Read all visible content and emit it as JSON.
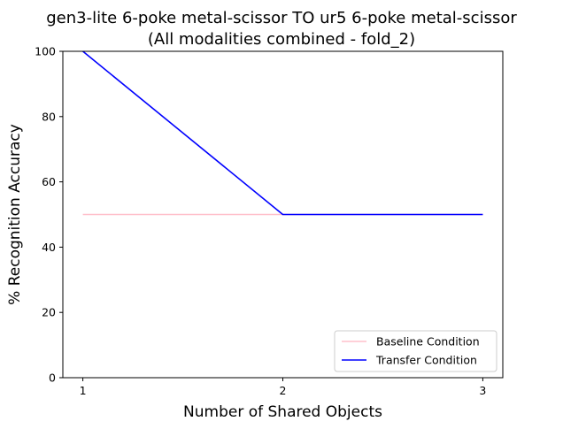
{
  "chart_data": {
    "type": "line",
    "title_line1": "gen3-lite 6-poke metal-scissor TO ur5 6-poke metal-scissor",
    "title_line2": "(All modalities combined - fold_2)",
    "xlabel": "Number of Shared Objects",
    "ylabel": "% Recognition Accuracy",
    "x": [
      1,
      2,
      3
    ],
    "xlim": [
      0.9,
      3.1
    ],
    "ylim": [
      0,
      100
    ],
    "xticks": [
      1,
      2,
      3
    ],
    "yticks": [
      0,
      20,
      40,
      60,
      80,
      100
    ],
    "grid": false,
    "legend_position": "lower-right",
    "series": [
      {
        "name": "Baseline Condition",
        "values": [
          50,
          50,
          50
        ],
        "color": "#ffc0cb"
      },
      {
        "name": "Transfer Condition",
        "values": [
          100,
          50,
          50
        ],
        "color": "#0000ff"
      }
    ]
  }
}
